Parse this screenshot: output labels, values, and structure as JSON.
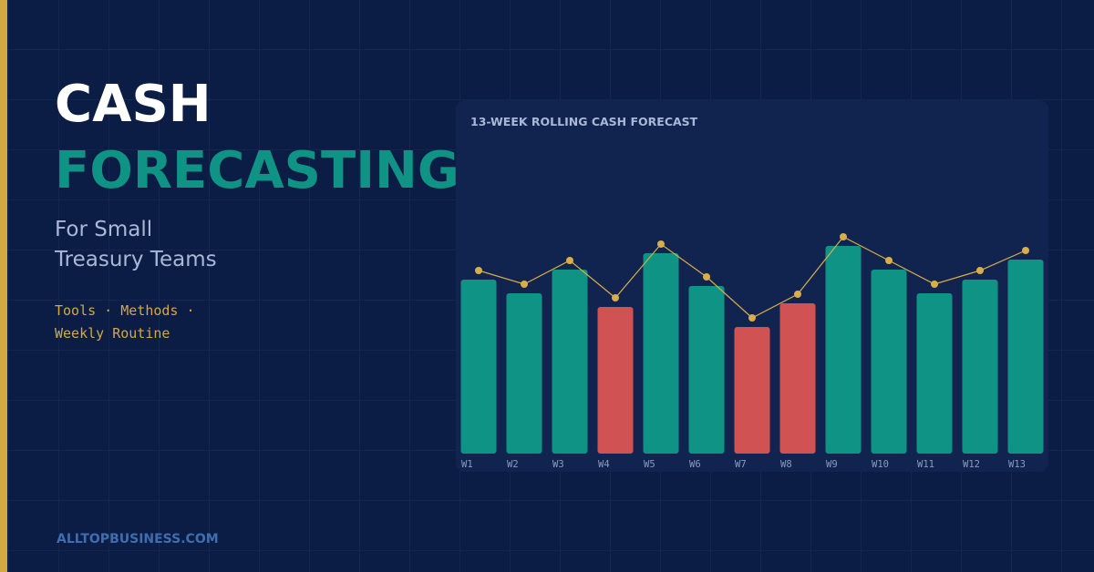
{
  "header": {
    "title_line1": "CASH",
    "title_line2": "FORECASTING",
    "subtitle_lines": [
      "For Small",
      "Treasury Teams"
    ],
    "tag_lines": [
      "Tools · Methods ·",
      "Weekly Routine"
    ]
  },
  "footer": {
    "brand": "ALLTOPBUSINESS.COM"
  },
  "chart_data": {
    "type": "bar",
    "title": "13-WEEK ROLLING CASH FORECAST",
    "categories": [
      "W1",
      "W2",
      "W3",
      "W4",
      "W5",
      "W6",
      "W7",
      "W8",
      "W9",
      "W10",
      "W11",
      "W12",
      "W13"
    ],
    "ylim": [
      0,
      250
    ],
    "series": [
      {
        "type": "bar",
        "colors": [
          "#0e9384",
          "#0e9384",
          "#0e9384",
          "#d15252",
          "#0e9384",
          "#0e9384",
          "#d15252",
          "#d15252",
          "#0e9384",
          "#0e9384",
          "#0e9384",
          "#0e9384",
          "#0e9384"
        ],
        "values": [
          191,
          176,
          202,
          161,
          220,
          184,
          139,
          165,
          228,
          202,
          176,
          191,
          213
        ]
      },
      {
        "type": "line",
        "color": "#d9ad4a",
        "values": [
          201,
          186,
          212,
          171,
          230,
          194,
          149,
          175,
          238,
          212,
          186,
          201,
          223
        ]
      }
    ]
  }
}
